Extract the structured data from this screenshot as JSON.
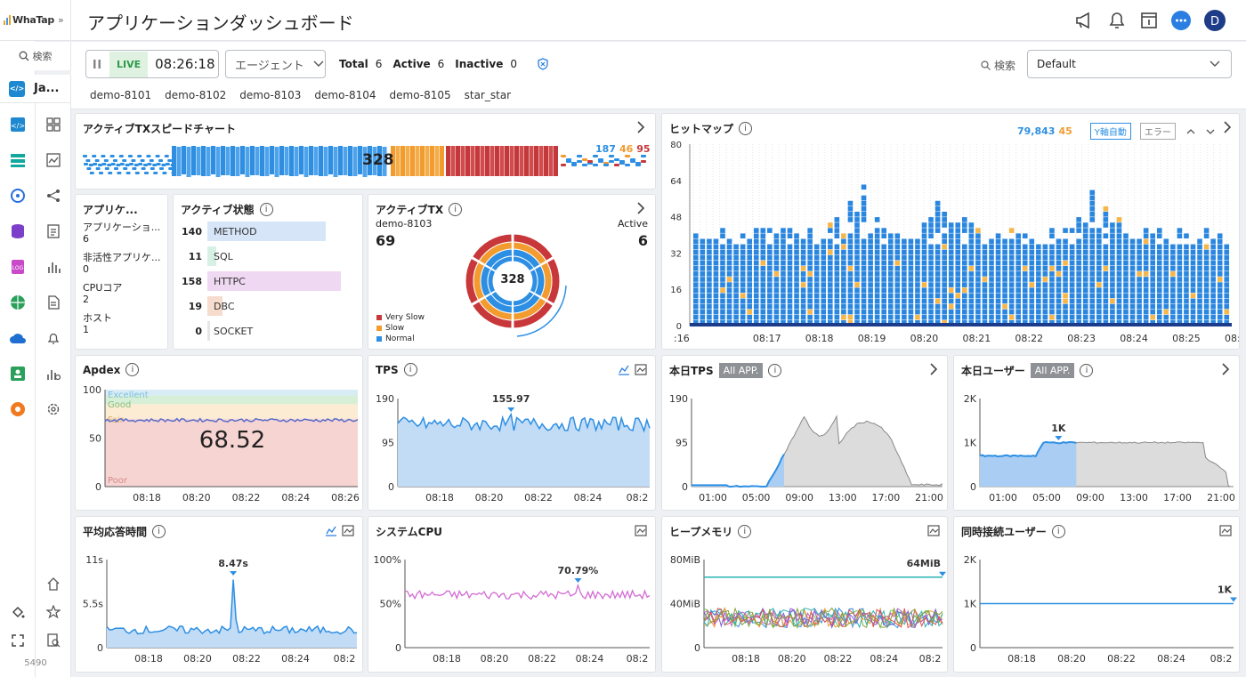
{
  "brand": "WhaTap",
  "page_title": "アプリケーションダッシュボード",
  "sidebar": {
    "search_label": "検索",
    "project_label": "Ja...",
    "project_badge": "</>",
    "version": "5490"
  },
  "toolbar": {
    "live_label": "LIVE",
    "live_time": "08:26:18",
    "agent_select": "エージェント",
    "total_label": "Total",
    "total": "6",
    "active_label": "Active",
    "active": "6",
    "inactive_label": "Inactive",
    "inactive": "0",
    "search_label": "検索",
    "preset": "Default",
    "agents": [
      "demo-8101",
      "demo-8102",
      "demo-8103",
      "demo-8104",
      "demo-8105",
      "star_star"
    ]
  },
  "speed_chart": {
    "title": "アクティブTXスピードチャート",
    "center": "328",
    "normal": "187",
    "slow": "46",
    "very_slow": "95"
  },
  "heatmap": {
    "title": "ヒットマップ",
    "count_normal": "79,843",
    "count_slow": "45",
    "yauto": "Y軸自動",
    "error": "エラー",
    "y_ticks": [
      "80",
      "64",
      "48",
      "32",
      "16",
      "0"
    ],
    "x_ticks": [
      ":16",
      "08:17",
      "08:18",
      "08:19",
      "08:20",
      "08:21",
      "08:22",
      "08:23",
      "08:24",
      "08:25",
      "08:26"
    ]
  },
  "app_card": {
    "title": "アプリケ...",
    "items": [
      {
        "label": "アプリケーショ...",
        "value": "6"
      },
      {
        "label": "非活性アプリケ...",
        "value": "0"
      },
      {
        "label": "CPUコア",
        "value": "2"
      },
      {
        "label": "ホスト",
        "value": "1"
      }
    ]
  },
  "active_status": {
    "title": "アクティブ状態",
    "rows": [
      {
        "value": "140",
        "label": "METHOD",
        "frac": 0.78,
        "color": "#d6e6f8"
      },
      {
        "value": "11",
        "label": "SQL",
        "frac": 0.06,
        "color": "#d7f0e6"
      },
      {
        "value": "158",
        "label": "HTTPC",
        "frac": 0.88,
        "color": "#efd8f2"
      },
      {
        "value": "19",
        "label": "DBC",
        "frac": 0.1,
        "color": "#f6dccd"
      },
      {
        "value": "0",
        "label": "SOCKET",
        "frac": 0,
        "color": "#e6e6e6"
      }
    ]
  },
  "active_tx": {
    "title": "アクティブTX",
    "agent": "demo-8103",
    "agent_value": "69",
    "active_label": "Active",
    "active_value": "6",
    "center": "328",
    "legend": [
      {
        "label": "Very Slow",
        "color": "#c8383a"
      },
      {
        "label": "Slow",
        "color": "#f29b2e"
      },
      {
        "label": "Normal",
        "color": "#2d8fe3"
      }
    ]
  },
  "apdex": {
    "title": "Apdex",
    "value": "68.52",
    "zones": [
      "Excellent",
      "Good",
      "Fair",
      "Poor"
    ],
    "y_ticks": [
      "100",
      "50",
      "0"
    ],
    "x_ticks": [
      "08:18",
      "08:20",
      "08:22",
      "08:24",
      "08:26"
    ]
  },
  "tps": {
    "title": "TPS",
    "peak": "155.97",
    "y_ticks": [
      "190",
      "95",
      "0"
    ],
    "x_ticks": [
      "08:18",
      "08:20",
      "08:22",
      "08:24",
      "08:2"
    ]
  },
  "today_tps": {
    "title": "本日TPS",
    "tag": "All APP.",
    "y_ticks": [
      "190",
      "95",
      "0"
    ],
    "x_ticks": [
      "01:00",
      "05:00",
      "09:00",
      "13:00",
      "17:00",
      "21:00"
    ]
  },
  "today_users": {
    "title": "本日ユーザー",
    "tag": "All APP.",
    "peak": "1K",
    "y_ticks": [
      "2K",
      "1K",
      "0"
    ],
    "x_ticks": [
      "01:00",
      "05:00",
      "09:00",
      "13:00",
      "17:00",
      "21:00"
    ]
  },
  "resp_time": {
    "title": "平均応答時間",
    "peak": "8.47s",
    "y_ticks": [
      "11s",
      "5.5s",
      "0"
    ],
    "x_ticks": [
      "08:18",
      "08:20",
      "08:22",
      "08:24",
      "08:2"
    ]
  },
  "sys_cpu": {
    "title": "システムCPU",
    "peak": "70.79%",
    "y_ticks": [
      "100%",
      "50%",
      "0"
    ],
    "x_ticks": [
      "08:18",
      "08:20",
      "08:22",
      "08:24",
      "08:2"
    ]
  },
  "heap": {
    "title": "ヒープメモリ",
    "peak": "64MiB",
    "y_ticks": [
      "80MiB",
      "40MiB",
      "0"
    ],
    "x_ticks": [
      "08:18",
      "08:20",
      "08:22",
      "08:24",
      "08:2"
    ]
  },
  "concurrent": {
    "title": "同時接続ユーザー",
    "peak": "1K",
    "y_ticks": [
      "2K",
      "1K",
      "0"
    ],
    "x_ticks": [
      "08:18",
      "08:20",
      "08:22",
      "08:24",
      "08:2"
    ]
  },
  "colors": {
    "accent": "#2d8fe3",
    "slow": "#f29b2e",
    "very_slow": "#c8383a",
    "live": "#2d9a4a"
  }
}
